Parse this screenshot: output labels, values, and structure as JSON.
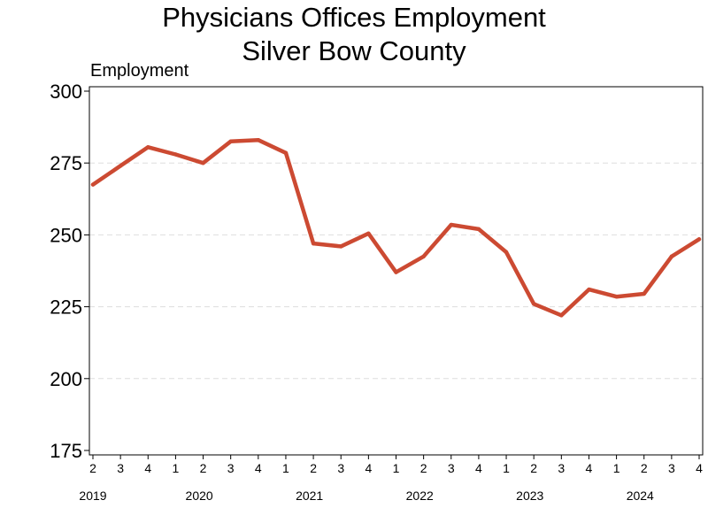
{
  "chart_data": {
    "type": "line",
    "title": [
      "Physicians Offices Employment",
      "Silver Bow County"
    ],
    "ylabel": "Employment",
    "xlabel": "",
    "ylim": [
      175,
      300
    ],
    "yticks": [
      175,
      200,
      225,
      250,
      275,
      300
    ],
    "grid": "horizontal-dashed",
    "legend": "none",
    "categories": [
      "2",
      "3",
      "4",
      "1",
      "2",
      "3",
      "4",
      "1",
      "2",
      "3",
      "4",
      "1",
      "2",
      "3",
      "4",
      "1",
      "2",
      "3",
      "4",
      "1",
      "2",
      "3",
      "4"
    ],
    "years": [
      {
        "label": "2019",
        "start": 0,
        "end": 2
      },
      {
        "label": "2020",
        "start": 3,
        "end": 6
      },
      {
        "label": "2021",
        "start": 7,
        "end": 10
      },
      {
        "label": "2022",
        "start": 11,
        "end": 14
      },
      {
        "label": "2023",
        "start": 15,
        "end": 18
      },
      {
        "label": "2024",
        "start": 19,
        "end": 22
      }
    ],
    "series": [
      {
        "color": "#cc4a32",
        "values": [
          267.5,
          274,
          280.5,
          278,
          275,
          282.5,
          283,
          278.5,
          247,
          246,
          250.5,
          237,
          242.5,
          253.5,
          252,
          244,
          226,
          222,
          231,
          228.5,
          229.5,
          242.5,
          248.5
        ]
      }
    ]
  }
}
